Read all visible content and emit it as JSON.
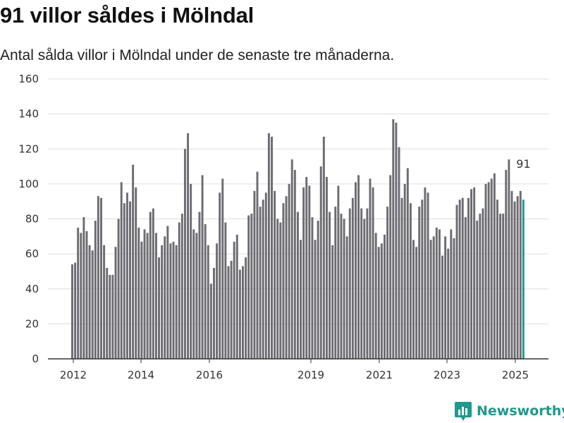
{
  "title": "91 villor såldes i Mölndal",
  "subtitle": "Antal sålda villor i Mölndal under de senaste tre månaderna.",
  "brand": "Newsworthy",
  "colors": {
    "bar": "#6d6c72",
    "highlight": "#1d9a8c",
    "grid": "#dddddd",
    "brand": "#1d9a8c"
  },
  "chart_data": {
    "type": "bar",
    "title": "",
    "xlabel": "",
    "ylabel": "",
    "ylim": [
      0,
      160
    ],
    "yticks": [
      0,
      20,
      40,
      60,
      80,
      100,
      120,
      140,
      160
    ],
    "xticks": [
      "2012",
      "2014",
      "2016",
      "2019",
      "2021",
      "2023",
      "2025"
    ],
    "highlight_label": "91",
    "grid": "horizontal",
    "series": [
      {
        "name": "2012",
        "values": [
          54,
          55,
          75,
          72,
          81,
          73,
          65,
          62,
          79,
          93,
          92,
          65,
          52,
          48,
          48,
          64,
          80,
          101,
          89,
          95,
          90,
          111,
          98,
          75
        ]
      },
      {
        "name": "2014",
        "values": [
          67,
          74,
          72,
          84,
          86,
          72,
          58,
          65,
          70,
          76,
          66,
          67,
          65,
          78,
          83,
          120,
          129,
          100,
          74,
          72,
          84,
          105,
          77,
          65,
          43,
          52,
          66,
          95,
          103,
          78,
          53,
          56,
          67,
          71,
          51,
          53,
          58,
          82,
          83,
          96,
          107,
          87,
          91,
          95,
          129,
          127,
          96,
          80,
          78,
          89,
          93,
          100,
          114,
          108,
          84,
          68,
          98,
          104,
          99,
          81,
          68,
          79,
          110,
          127,
          104,
          84,
          65,
          87,
          99,
          83,
          80,
          70,
          86,
          92,
          101,
          105,
          86,
          80,
          86,
          103,
          98,
          72,
          64,
          66,
          71,
          87,
          105,
          137,
          135,
          121,
          92,
          100,
          109,
          89,
          68,
          64,
          87,
          91,
          98,
          95,
          68,
          70,
          75,
          74,
          59,
          70,
          63,
          74,
          69,
          88,
          91,
          92,
          81,
          92,
          97,
          98,
          79,
          83,
          86,
          100,
          101,
          103,
          106,
          91,
          83,
          83,
          108,
          114,
          96,
          90,
          93,
          96,
          91
        ]
      }
    ]
  }
}
